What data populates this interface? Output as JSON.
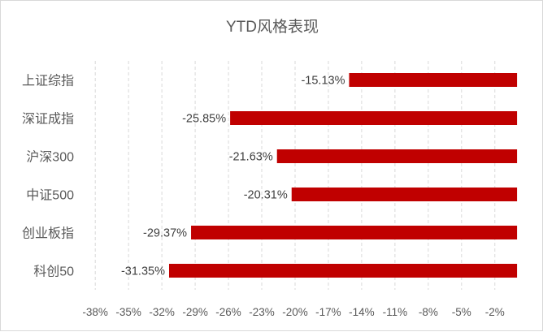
{
  "chart_data": {
    "type": "bar",
    "orientation": "horizontal",
    "title": "YTD风格表现",
    "categories": [
      "上证综指",
      "深证成指",
      "沪深300",
      "中证500",
      "创业板指",
      "科创50"
    ],
    "values": [
      -15.13,
      -25.85,
      -21.63,
      -20.31,
      -29.37,
      -31.35
    ],
    "data_labels": [
      "-15.13%",
      "-25.85%",
      "-21.63%",
      "-20.31%",
      "-29.37%",
      "-31.35%"
    ],
    "x_ticks": [
      -38,
      -35,
      -32,
      -29,
      -26,
      -23,
      -20,
      -17,
      -14,
      -11,
      -8,
      -5,
      -2
    ],
    "x_tick_labels": [
      "-38%",
      "-35%",
      "-32%",
      "-29%",
      "-26%",
      "-23%",
      "-20%",
      "-17%",
      "-14%",
      "-11%",
      "-8%",
      "-5%",
      "-2%"
    ],
    "xlim": [
      -38.6,
      0.8
    ],
    "xlabel": "",
    "ylabel": "",
    "grid": "vertical-dashed",
    "legend": "none",
    "colors": {
      "bar": "#c00000",
      "grid": "#d9d9d9",
      "text": "#595959"
    }
  }
}
